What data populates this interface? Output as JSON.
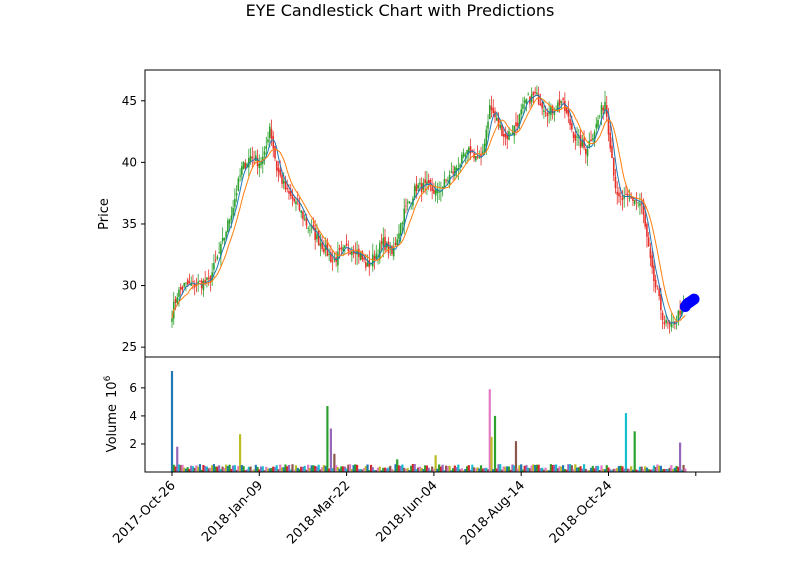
{
  "chart_data": {
    "type": "candlestick",
    "title": "EYE Candlestick Chart with Predictions",
    "price_panel": {
      "ylabel": "Price",
      "ylim": [
        24.2,
        47.5
      ],
      "yticks": [
        "25",
        "30",
        "35",
        "40",
        "45"
      ],
      "ytick_values": [
        25,
        30,
        35,
        40,
        45
      ],
      "grid": false,
      "colors": {
        "up": "#2ca02c",
        "down": "#e8302a",
        "ma_fast": "#1f77b4",
        "ma_slow": "#ff7f0e",
        "prediction": "#0000ff"
      }
    },
    "volume_panel": {
      "ylabel": "Volume",
      "ylabel_exponent": "10",
      "ylabel_exponent_power": "6",
      "ylim": [
        0,
        8.2
      ],
      "yticks": [
        "2",
        "4",
        "6"
      ],
      "ytick_values": [
        2,
        4,
        6
      ],
      "unit": "millions",
      "colors": [
        "#1f77b4",
        "#2ca02c",
        "#d62728",
        "#9467bd",
        "#17becf",
        "#8c564b",
        "#e377c2",
        "#bcbd22"
      ]
    },
    "x_axis": {
      "start_date": "2017-10-26",
      "end_date": "2018-12-28",
      "tick_labels": [
        "2017-Oct-26",
        "2018-Jan-09",
        "2018-Mar-22",
        "2018-Jun-04",
        "2018-Aug-14",
        "2018-Oct-24"
      ],
      "tick_index": [
        0,
        50,
        100,
        150,
        200,
        250
      ]
    },
    "price_anchors": [
      [
        "2017-10-26",
        27.8
      ],
      [
        "2017-10-31",
        29.3
      ],
      [
        "2017-11-06",
        30.0
      ],
      [
        "2017-11-15",
        30.1
      ],
      [
        "2017-11-24",
        30.3
      ],
      [
        "2017-12-05",
        33.0
      ],
      [
        "2017-12-14",
        36.5
      ],
      [
        "2017-12-21",
        39.5
      ],
      [
        "2017-12-28",
        40.5
      ],
      [
        "2018-01-04",
        40.0
      ],
      [
        "2018-01-09",
        40.5
      ],
      [
        "2018-01-12",
        43.0
      ],
      [
        "2018-01-18",
        39.5
      ],
      [
        "2018-01-26",
        37.5
      ],
      [
        "2018-02-05",
        36.5
      ],
      [
        "2018-02-12",
        35.0
      ],
      [
        "2018-02-22",
        33.5
      ],
      [
        "2018-03-05",
        32.0
      ],
      [
        "2018-03-15",
        33.0
      ],
      [
        "2018-03-22",
        33.0
      ],
      [
        "2018-04-02",
        31.5
      ],
      [
        "2018-04-13",
        33.5
      ],
      [
        "2018-04-20",
        32.5
      ],
      [
        "2018-05-01",
        36.0
      ],
      [
        "2018-05-10",
        38.0
      ],
      [
        "2018-05-18",
        38.0
      ],
      [
        "2018-05-28",
        37.5
      ],
      [
        "2018-06-04",
        38.5
      ],
      [
        "2018-06-14",
        40.0
      ],
      [
        "2018-06-22",
        41.0
      ],
      [
        "2018-07-02",
        40.0
      ],
      [
        "2018-07-09",
        44.5
      ],
      [
        "2018-07-20",
        42.0
      ],
      [
        "2018-07-30",
        43.0
      ],
      [
        "2018-08-07",
        45.0
      ],
      [
        "2018-08-14",
        45.5
      ],
      [
        "2018-08-24",
        44.0
      ],
      [
        "2018-09-04",
        45.0
      ],
      [
        "2018-09-14",
        42.0
      ],
      [
        "2018-09-24",
        41.0
      ],
      [
        "2018-10-02",
        43.0
      ],
      [
        "2018-10-09",
        45.0
      ],
      [
        "2018-10-18",
        37.0
      ],
      [
        "2018-10-24",
        37.0
      ],
      [
        "2018-11-01",
        37.0
      ],
      [
        "2018-11-07",
        36.5
      ],
      [
        "2018-11-15",
        31.0
      ],
      [
        "2018-11-26",
        27.0
      ],
      [
        "2018-11-30",
        26.5
      ],
      [
        "2018-12-07",
        28.0
      ],
      [
        "2018-12-13",
        28.5
      ]
    ],
    "volume_spikes": [
      [
        "2017-10-26",
        7.2
      ],
      [
        "2017-10-31",
        1.8
      ],
      [
        "2017-12-20",
        2.7
      ],
      [
        "2018-02-28",
        4.7
      ],
      [
        "2018-03-02",
        3.1
      ],
      [
        "2018-03-06",
        1.3
      ],
      [
        "2018-04-25",
        0.9
      ],
      [
        "2018-05-25",
        1.2
      ],
      [
        "2018-07-09",
        5.9
      ],
      [
        "2018-07-10",
        2.5
      ],
      [
        "2018-07-12",
        4.0
      ],
      [
        "2018-07-30",
        2.2
      ],
      [
        "2018-10-25",
        4.2
      ],
      [
        "2018-11-01",
        2.9
      ],
      [
        "2018-12-07",
        2.1
      ]
    ],
    "predictions": {
      "marker": "circle",
      "color": "#0000ff",
      "values": [
        [
          "2018-12-12",
          28.3
        ],
        [
          "2018-12-13",
          28.5
        ],
        [
          "2018-12-14",
          28.6
        ],
        [
          "2018-12-17",
          28.7
        ],
        [
          "2018-12-18",
          28.8
        ],
        [
          "2018-12-19",
          28.9
        ]
      ]
    }
  }
}
